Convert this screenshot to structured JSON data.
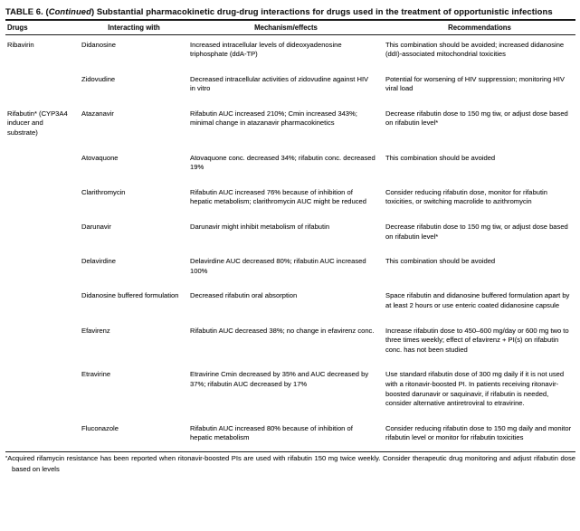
{
  "title": {
    "prefix": "TABLE 6. (",
    "continued": "Continued",
    "suffix": ") Substantial pharmacokinetic drug-drug interactions for drugs used in the treatment of opportunistic infections"
  },
  "table": {
    "headers": [
      "Drugs",
      "Interacting with",
      "Mechanism/effects",
      "Recommendations"
    ],
    "rows": [
      {
        "drug": "Ribavirin",
        "interacting": "Didanosine",
        "mechanism": "Increased intracellular levels of dideoxyadenosine triphosphate (ddA-TP)",
        "recommendation": "This combination should be avoided; increased didanosine (ddI)-associated mitochondrial toxicities"
      },
      {
        "drug": "",
        "interacting": "Zidovudine",
        "mechanism": "Decreased intracellular activities of zidovudine against HIV in vitro",
        "recommendation": "Potential for worsening of HIV suppression; monitoring HIV viral load"
      },
      {
        "drug": "Rifabutin* (CYP3A4 inducer and substrate)",
        "interacting": "Atazanavir",
        "mechanism": "Rifabutin AUC increased 210%; Cmin increased 343%; minimal change in atazanavir pharmacokinetics",
        "recommendation": "Decrease rifabutin dose to 150 mg tiw, or adjust dose based on rifabutin level*"
      },
      {
        "drug": "",
        "interacting": "Atovaquone",
        "mechanism": "Atovaquone conc. decreased 34%; rifabutin conc. decreased 19%",
        "recommendation": "This combination should be avoided"
      },
      {
        "drug": "",
        "interacting": "Clarithromycin",
        "mechanism": "Rifabutin AUC increased 76% because of inhibition of hepatic metabolism; clarithromycin AUC might be reduced",
        "recommendation": "Consider reducing rifabutin dose, monitor for rifabutin toxicities, or switching macrolide to azithromycin"
      },
      {
        "drug": "",
        "interacting": "Darunavir",
        "mechanism": "Darunavir might inhibit metabolism of rifabutin",
        "recommendation": "Decrease rifabutin dose to 150 mg tiw, or adjust dose based on rifabutin level*"
      },
      {
        "drug": "",
        "interacting": "Delavirdine",
        "mechanism": "Delavirdine AUC decreased 80%; rifabutin AUC increased 100%",
        "recommendation": "This combination should be avoided"
      },
      {
        "drug": "",
        "interacting": "Didanosine buffered formulation",
        "mechanism": "Decreased rifabutin oral absorption",
        "recommendation": "Space rifabutin and didanosine buffered formulation apart by at least 2 hours or use enteric coated didanosine capsule"
      },
      {
        "drug": "",
        "interacting": "Efavirenz",
        "mechanism": "Rifabutin AUC decreased 38%; no change in efavirenz conc.",
        "recommendation": "Increase rifabutin dose to 450–600 mg/day or 600 mg two to three times weekly; effect of efavirenz + PI(s) on rifabutin conc. has not been studied"
      },
      {
        "drug": "",
        "interacting": "Etravirine",
        "mechanism": "Etravirine Cmin decreased by 35% and AUC decreased by 37%; rifabutin AUC decreased by 17%",
        "recommendation": "Use standard rifabutin dose of 300 mg daily if it is not used with a ritonavir-boosted PI. In patients receiving ritonavir-boosted darunavir or saquinavir, if rifabutin is needed, consider alternative antiretroviral to etravirine."
      },
      {
        "drug": "",
        "interacting": "Fluconazole",
        "mechanism": "Rifabutin AUC increased 80% because of inhibition of hepatic metabolism",
        "recommendation": "Consider reducing rifabutin dose to 150 mg daily and monitor rifabutin level or monitor for rifabutin toxicities"
      }
    ]
  },
  "footnote": {
    "marker": "*",
    "text": "Acquired rifamycin resistance has been reported when ritonavir-boosted PIs are used with rifabutin 150 mg twice weekly. Consider therapeutic drug monitoring and adjust rifabutin dose based on levels"
  },
  "colors": {
    "text": "#1b1b1b",
    "rule": "#181818",
    "background": "#ffffff"
  }
}
